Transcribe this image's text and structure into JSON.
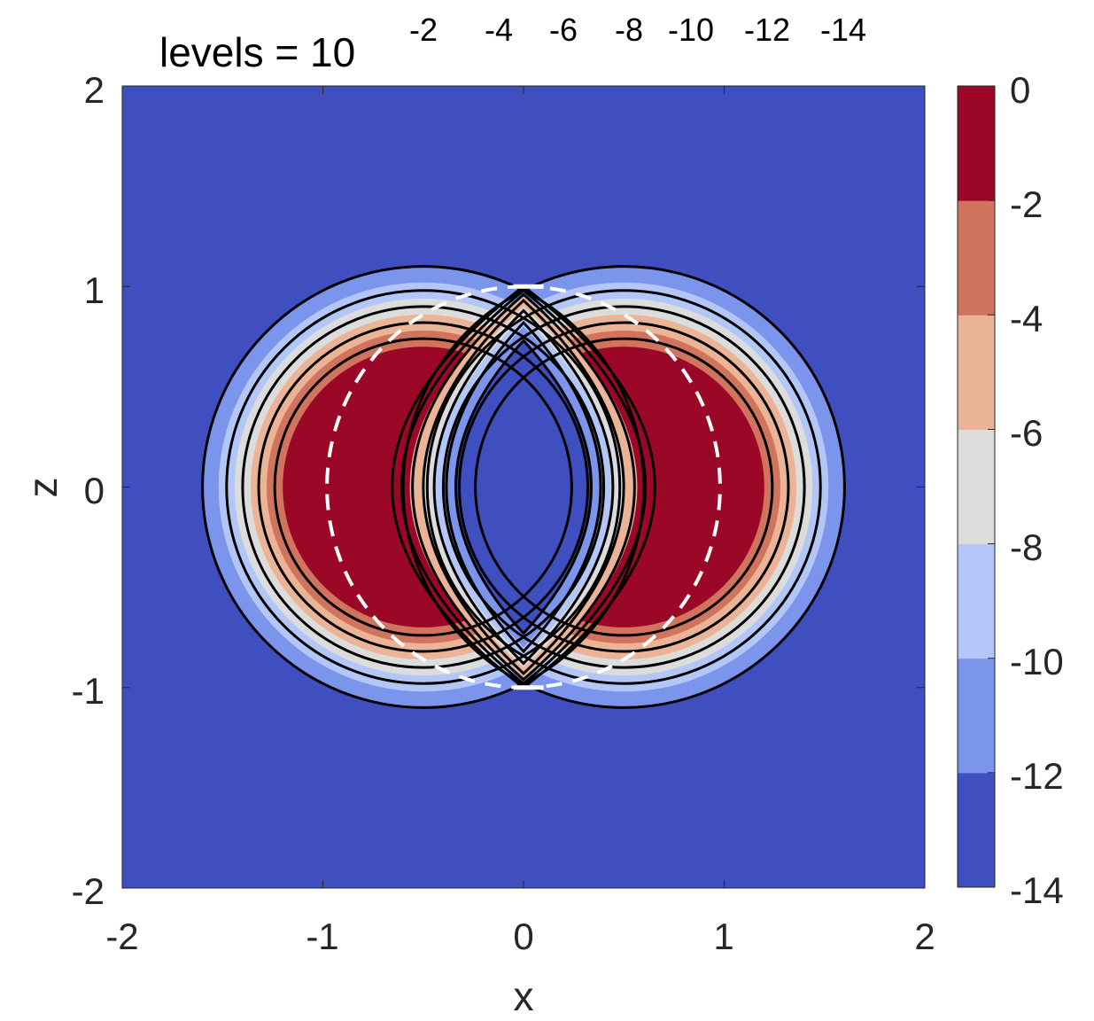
{
  "chart_data": {
    "type": "contour",
    "title": {
      "prefix": "levels = 10",
      "exponents": [
        "-2",
        "-4",
        "-6",
        "-8",
        "-10",
        "-12",
        "-14"
      ]
    },
    "xlabel": "x",
    "ylabel": "z",
    "xlim": [
      -2,
      2
    ],
    "ylim": [
      -2,
      2
    ],
    "xticks": [
      -2,
      -1,
      0,
      1,
      2
    ],
    "yticks": [
      -2,
      -1,
      0,
      1,
      2
    ],
    "xtick_labels": [
      "-2",
      "-1",
      "0",
      "1",
      "2"
    ],
    "ytick_labels": [
      "-2",
      "-1",
      "0",
      "1",
      "2"
    ],
    "contour_levels_log10": [
      -2,
      -4,
      -6,
      -8,
      -10,
      -12,
      -14
    ],
    "colorbar": {
      "range": [
        -14,
        0
      ],
      "ticks": [
        "0",
        "-2",
        "-4",
        "-6",
        "-8",
        "-10",
        "-12",
        "-14"
      ],
      "band_colors": [
        "#3f4fbf",
        "#7b94ec",
        "#b2c7f8",
        "#dcdcdc",
        "#ebb496",
        "#d1745d",
        "#9b0726"
      ]
    },
    "source_circle": {
      "center": [
        0,
        0
      ],
      "radius": 1,
      "style": "white dashed, right half"
    },
    "outer_lobes": {
      "centers": [
        [
          -0.5,
          0
        ],
        [
          0.5,
          0
        ]
      ],
      "radius": 1.1
    },
    "inner_lens": {
      "half_width": 0.5,
      "half_height": 0.73
    }
  }
}
